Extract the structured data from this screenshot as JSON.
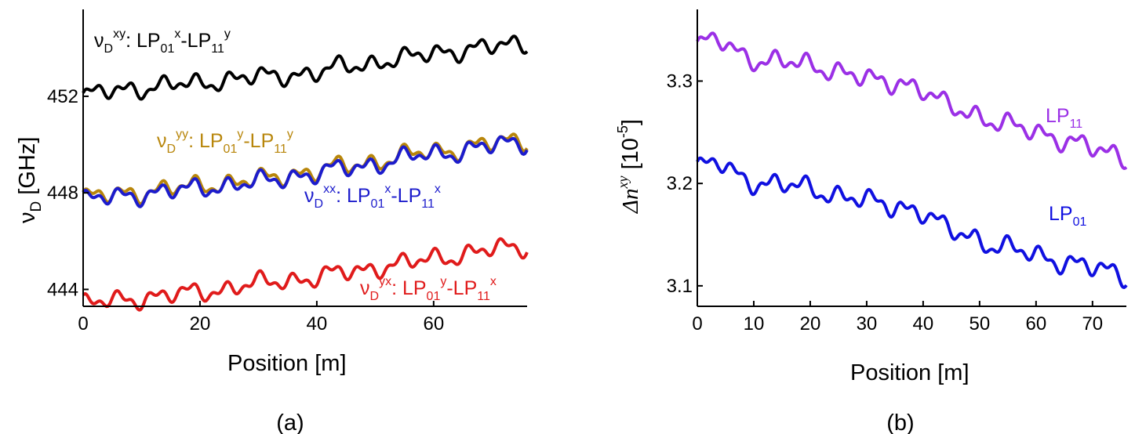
{
  "chart_data": [
    {
      "type": "line",
      "caption": "(a)",
      "xlabel": "Position [m]",
      "ylabel": {
        "main": "ν",
        "sub": "D",
        "unit": "[GHz]"
      },
      "xlim": [
        0,
        76
      ],
      "ylim": [
        443.3,
        455.6
      ],
      "xticks": [
        "0",
        "20",
        "40",
        "60"
      ],
      "yticks": [
        "444",
        "448",
        "452"
      ],
      "x": [
        0,
        4,
        8,
        12,
        16,
        20,
        24,
        28,
        32,
        36,
        40,
        44,
        48,
        52,
        56,
        60,
        64,
        68,
        72,
        76
      ],
      "series": [
        {
          "name": "νD_xy",
          "color": "#000000",
          "values": [
            452.0,
            452.2,
            452.3,
            452.4,
            452.5,
            452.5,
            452.7,
            452.8,
            452.8,
            452.9,
            453.0,
            453.2,
            453.3,
            453.5,
            453.6,
            453.8,
            453.9,
            454.0,
            454.1,
            454.2
          ],
          "label": {
            "nu": "ν",
            "sub": "D",
            "sup": "xy",
            "text": ": LP",
            "m1": "01",
            "p1": "x",
            "dash": "-LP",
            "m2": "11",
            "p2": "y"
          }
        },
        {
          "name": "νD_yy",
          "color": "#b8860b",
          "values": [
            447.8,
            447.9,
            448.0,
            448.1,
            448.2,
            448.3,
            448.4,
            448.5,
            448.6,
            448.8,
            448.9,
            449.1,
            449.2,
            449.4,
            449.6,
            449.7,
            449.8,
            450.0,
            450.1,
            450.2
          ],
          "label": {
            "nu": "ν",
            "sub": "D",
            "sup": "yy",
            "text": ": LP",
            "m1": "01",
            "p1": "y",
            "dash": "-LP",
            "m2": "11",
            "p2": "y"
          }
        },
        {
          "name": "νD_xx",
          "color": "#1c1ccc",
          "values": [
            447.7,
            447.8,
            447.9,
            448.0,
            448.1,
            448.2,
            448.3,
            448.4,
            448.5,
            448.7,
            448.8,
            449.0,
            449.1,
            449.3,
            449.5,
            449.6,
            449.7,
            449.9,
            450.0,
            450.1
          ],
          "label": {
            "nu": "ν",
            "sub": "D",
            "sup": "xx",
            "text": ": LP",
            "m1": "01",
            "p1": "x",
            "dash": "-LP",
            "m2": "11",
            "p2": "x"
          }
        },
        {
          "name": "νD_yx",
          "color": "#e01b1b",
          "values": [
            443.4,
            443.5,
            443.6,
            443.7,
            443.8,
            443.9,
            444.0,
            444.2,
            444.3,
            444.4,
            444.5,
            444.7,
            444.8,
            445.0,
            445.1,
            445.3,
            445.4,
            445.6,
            445.7,
            445.8
          ],
          "label": {
            "nu": "ν",
            "sub": "D",
            "sup": "yx",
            "text": ": LP",
            "m1": "01",
            "p1": "y",
            "dash": "-LP",
            "m2": "11",
            "p2": "x"
          }
        }
      ]
    },
    {
      "type": "line",
      "caption": "(b)",
      "xlabel": "Position [m]",
      "ylabel": {
        "main": "Δn",
        "sup": "xy",
        "unit": " [10",
        "exp": "-5",
        "close": "]"
      },
      "xlim": [
        0,
        76
      ],
      "ylim": [
        3.08,
        3.37
      ],
      "xticks": [
        "0",
        "10",
        "20",
        "30",
        "40",
        "50",
        "60",
        "70"
      ],
      "yticks": [
        "3.1",
        "3.2",
        "3.3"
      ],
      "x": [
        0,
        4,
        8,
        12,
        16,
        20,
        24,
        28,
        32,
        36,
        40,
        44,
        48,
        52,
        56,
        60,
        64,
        68,
        72,
        76
      ],
      "series": [
        {
          "name": "LP11",
          "color": "#9b30e6",
          "values": [
            3.335,
            3.34,
            3.325,
            3.32,
            3.318,
            3.315,
            3.312,
            3.305,
            3.298,
            3.3,
            3.292,
            3.275,
            3.27,
            3.262,
            3.255,
            3.25,
            3.245,
            3.238,
            3.23,
            3.225
          ],
          "label": {
            "text": "LP",
            "sub": "11"
          }
        },
        {
          "name": "LP01",
          "color": "#1010e0",
          "values": [
            3.215,
            3.22,
            3.205,
            3.2,
            3.198,
            3.195,
            3.19,
            3.185,
            3.18,
            3.178,
            3.172,
            3.155,
            3.15,
            3.14,
            3.135,
            3.13,
            3.125,
            3.12,
            3.115,
            3.11
          ],
          "label": {
            "text": "LP",
            "sub": "01"
          }
        }
      ]
    }
  ]
}
